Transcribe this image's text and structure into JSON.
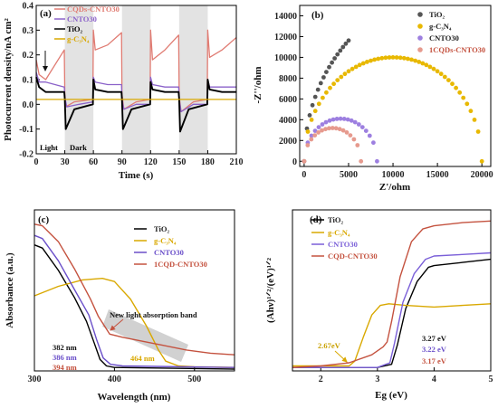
{
  "chart_data": [
    {
      "panel": "(a)",
      "type": "line",
      "xlabel": "Time (s)",
      "ylabel": "Photocurrent density/nA cm²",
      "xlim": [
        0,
        210
      ],
      "ylim": [
        -0.2,
        0.4
      ],
      "xticks": [
        0,
        30,
        60,
        90,
        120,
        150,
        180,
        210
      ],
      "yticks": [
        -0.2,
        -0.1,
        0.0,
        0.1,
        0.2,
        0.3,
        0.4
      ],
      "legend_position": "top-left",
      "dark_intervals": [
        [
          30,
          60
        ],
        [
          90,
          120
        ],
        [
          150,
          180
        ]
      ],
      "annotations": [
        "Light",
        "Dark"
      ],
      "series": [
        {
          "name": "CQDs-CNTO30",
          "color": "#e07b72",
          "x": [
            0,
            3,
            10,
            29.5,
            30,
            31,
            40,
            59.5,
            60,
            62,
            75,
            89.5,
            90,
            92,
            105,
            119.5,
            120,
            122,
            135,
            149.5,
            150,
            152,
            165,
            179.5,
            180,
            182,
            195,
            210
          ],
          "y": [
            0.18,
            0.12,
            0.1,
            0.22,
            0.04,
            -0.01,
            0.01,
            0.02,
            0.3,
            0.22,
            0.24,
            0.29,
            0.04,
            -0.02,
            0.01,
            0.02,
            0.3,
            0.18,
            0.22,
            0.28,
            0.03,
            -0.03,
            0.01,
            0.02,
            0.3,
            0.19,
            0.22,
            0.27
          ]
        },
        {
          "name": "CNTO30",
          "color": "#8b62c9",
          "x": [
            0,
            3,
            10,
            29.5,
            30,
            32,
            45,
            59.5,
            60,
            62,
            75,
            89.5,
            90,
            92,
            105,
            119.5,
            120,
            122,
            135,
            149.5,
            150,
            152,
            165,
            179.5,
            180,
            182,
            195,
            210
          ],
          "y": [
            0.13,
            0.09,
            0.09,
            0.07,
            0.03,
            -0.01,
            0.0,
            0.01,
            0.11,
            0.09,
            0.08,
            0.08,
            0.02,
            -0.02,
            0.0,
            0.0,
            0.11,
            0.08,
            0.07,
            0.07,
            0.02,
            -0.03,
            0.0,
            0.0,
            0.1,
            0.07,
            0.07,
            0.07
          ]
        },
        {
          "name": "TiO₂",
          "color": "#000000",
          "x": [
            0,
            3,
            10,
            29.5,
            30,
            31,
            40,
            59.5,
            60,
            62,
            75,
            89.5,
            90,
            91,
            100,
            119.5,
            120,
            122,
            135,
            149.5,
            150,
            151,
            160,
            179.5,
            180,
            182,
            195,
            210
          ],
          "y": [
            0.11,
            0.07,
            0.05,
            0.05,
            0.02,
            -0.1,
            -0.02,
            0.0,
            0.1,
            0.06,
            0.05,
            0.05,
            0.02,
            -0.1,
            -0.02,
            0.0,
            0.09,
            0.06,
            0.05,
            0.05,
            0.02,
            -0.11,
            -0.02,
            0.0,
            0.1,
            0.06,
            0.05,
            0.05
          ]
        },
        {
          "name": "g-C₃N₄",
          "color": "#d9a800",
          "x": [
            0,
            30,
            60,
            90,
            120,
            150,
            180,
            210
          ],
          "y": [
            0.02,
            0.02,
            0.02,
            0.02,
            0.02,
            0.02,
            0.02,
            0.02
          ]
        }
      ]
    },
    {
      "panel": "(b)",
      "type": "scatter",
      "xlabel": "Z'/ohm",
      "ylabel": "-Z''/ohm",
      "xlim": [
        -500,
        21000
      ],
      "ylim": [
        -500,
        15000
      ],
      "xticks": [
        0,
        5000,
        10000,
        15000,
        20000
      ],
      "yticks": [
        0,
        2000,
        4000,
        6000,
        8000,
        10000,
        12000,
        14000
      ],
      "legend_position": "top-right",
      "series": [
        {
          "name": "TiO₂",
          "color": "#555555",
          "model": "arc",
          "R": 32000,
          "xmax": 5000
        },
        {
          "name": "g-C₃N₄",
          "color": "#e8b800",
          "model": "arc",
          "R": 20000,
          "xmax": 20000
        },
        {
          "name": "CNTO30",
          "color": "#9d7fe0",
          "model": "arc",
          "R": 8200,
          "xmax": 8200
        },
        {
          "name": "1CQDs-CNTO30",
          "color": "#e69a8e",
          "model": "arc",
          "R": 6400,
          "xmax": 6400
        }
      ]
    },
    {
      "panel": "(c)",
      "type": "line",
      "xlabel": "Wavelength (nm)",
      "ylabel": "Absorbance (a.u.)",
      "xlim": [
        300,
        550
      ],
      "xticks": [
        300,
        400,
        500
      ],
      "legend_position": "top-right",
      "annotations": [
        "New light absorption band",
        "382 nm",
        "386 nm",
        "394 nm",
        "464 nm"
      ],
      "series": [
        {
          "name": "TiO₂",
          "color": "#000000",
          "x": [
            300,
            310,
            330,
            350,
            365,
            375,
            382,
            390,
            400,
            550
          ],
          "y": [
            0.78,
            0.76,
            0.62,
            0.45,
            0.3,
            0.16,
            0.06,
            0.02,
            0.01,
            0.0
          ]
        },
        {
          "name": "g-C₃N₄",
          "color": "#d9a800",
          "x": [
            300,
            330,
            360,
            385,
            400,
            420,
            440,
            455,
            464,
            480,
            500,
            550
          ],
          "y": [
            0.46,
            0.52,
            0.56,
            0.57,
            0.55,
            0.44,
            0.27,
            0.12,
            0.05,
            0.02,
            0.015,
            0.01
          ]
        },
        {
          "name": "CNTO30",
          "color": "#6a4fc9",
          "x": [
            300,
            310,
            330,
            350,
            368,
            378,
            386,
            395,
            410,
            550
          ],
          "y": [
            0.84,
            0.82,
            0.68,
            0.5,
            0.34,
            0.18,
            0.07,
            0.03,
            0.02,
            0.01
          ]
        },
        {
          "name": "1CQD-CNTO30",
          "color": "#c4523f",
          "x": [
            300,
            310,
            330,
            350,
            370,
            380,
            394,
            410,
            430,
            460,
            490,
            520,
            550
          ],
          "y": [
            0.91,
            0.9,
            0.8,
            0.63,
            0.44,
            0.33,
            0.22,
            0.2,
            0.18,
            0.15,
            0.12,
            0.1,
            0.09
          ]
        }
      ]
    },
    {
      "panel": "(d)",
      "type": "line",
      "xlabel": "Eg (eV)",
      "ylabel": "(Ahν)¹ᐟ²/(eV)¹ᐟ²",
      "xlim": [
        1.5,
        5
      ],
      "xticks": [
        2,
        3,
        4,
        5
      ],
      "legend_position": "top-left",
      "annotations": [
        "2.67eV",
        "3.27 eV",
        "3.22 eV",
        "3.17 eV"
      ],
      "series": [
        {
          "name": "TiO₂",
          "color": "#000000",
          "x": [
            1.5,
            3.0,
            3.25,
            3.35,
            3.5,
            3.7,
            3.9,
            4.0,
            4.5,
            5.0
          ],
          "y": [
            0.01,
            0.01,
            0.03,
            0.15,
            0.38,
            0.55,
            0.64,
            0.65,
            0.67,
            0.69
          ]
        },
        {
          "name": "g-C₃N₄",
          "color": "#d9a800",
          "x": [
            1.5,
            2.5,
            2.6,
            2.75,
            2.9,
            3.05,
            3.2,
            3.5,
            4.0,
            4.5,
            5.0
          ],
          "y": [
            0.02,
            0.02,
            0.05,
            0.2,
            0.34,
            0.4,
            0.41,
            0.4,
            0.39,
            0.4,
            0.41
          ]
        },
        {
          "name": "CNTO30",
          "color": "#7a5fd8",
          "x": [
            1.5,
            3.0,
            3.22,
            3.3,
            3.45,
            3.65,
            3.85,
            4.0,
            4.5,
            5.0
          ],
          "y": [
            0.01,
            0.01,
            0.04,
            0.16,
            0.42,
            0.6,
            0.69,
            0.71,
            0.72,
            0.73
          ]
        },
        {
          "name": "CQD-CNTO30",
          "color": "#c4523f",
          "x": [
            1.5,
            2.0,
            2.5,
            2.9,
            3.1,
            3.17,
            3.25,
            3.4,
            3.6,
            3.8,
            4.0,
            4.5,
            5.0
          ],
          "y": [
            0.01,
            0.02,
            0.04,
            0.09,
            0.14,
            0.17,
            0.3,
            0.58,
            0.8,
            0.88,
            0.9,
            0.92,
            0.93
          ]
        }
      ]
    }
  ]
}
